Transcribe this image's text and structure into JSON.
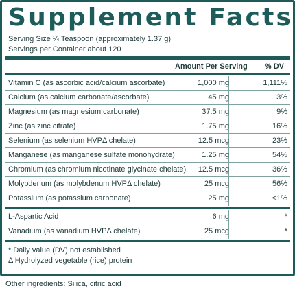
{
  "title": "Supplement Facts",
  "serving_size": "Serving Size ¼ Teaspoon (approximately 1.37 g)",
  "servings_per_container": "Servings per Container about 120",
  "columns": {
    "amount": "Amount Per Serving",
    "dv": "% DV"
  },
  "nutrients": [
    {
      "name": "Vitamin C (as ascorbic acid/calcium ascorbate)",
      "amount": "1,000 mg",
      "dv": "1,111%"
    },
    {
      "name": "Calcium (as calcium carbonate/ascorbate)",
      "amount": "45 mg",
      "dv": "3%"
    },
    {
      "name": "Magnesium (as magnesium carbonate)",
      "amount": "37.5 mg",
      "dv": "9%"
    },
    {
      "name": "Zinc (as zinc citrate)",
      "amount": "1.75 mg",
      "dv": "16%"
    },
    {
      "name": "Selenium (as selenium HVPΔ chelate)",
      "amount": "12.5 mcg",
      "dv": "23%"
    },
    {
      "name": "Manganese (as manganese sulfate monohydrate)",
      "amount": "1.25 mg",
      "dv": "54%"
    },
    {
      "name": "Chromium (as chromium nicotinate glycinate chelate)",
      "amount": "12.5 mcg",
      "dv": "36%"
    },
    {
      "name": "Molybdenum (as molybdenum HVPΔ chelate)",
      "amount": "25 mcg",
      "dv": "56%"
    },
    {
      "name": "Potassium (as potassium carbonate)",
      "amount": "25 mg",
      "dv": "<1%"
    }
  ],
  "other_nutrients": [
    {
      "name": "L-Aspartic Acid",
      "amount": "6 mg",
      "dv": "*"
    },
    {
      "name": "Vanadium (as vanadium HVPΔ chelate)",
      "amount": "25 mcg",
      "dv": "*"
    }
  ],
  "footnotes": [
    "* Daily value (DV) not established",
    "Δ Hydrolyzed vegetable (rice) protein"
  ],
  "other_ingredients": "Other ingredients: Silica, citric acid"
}
